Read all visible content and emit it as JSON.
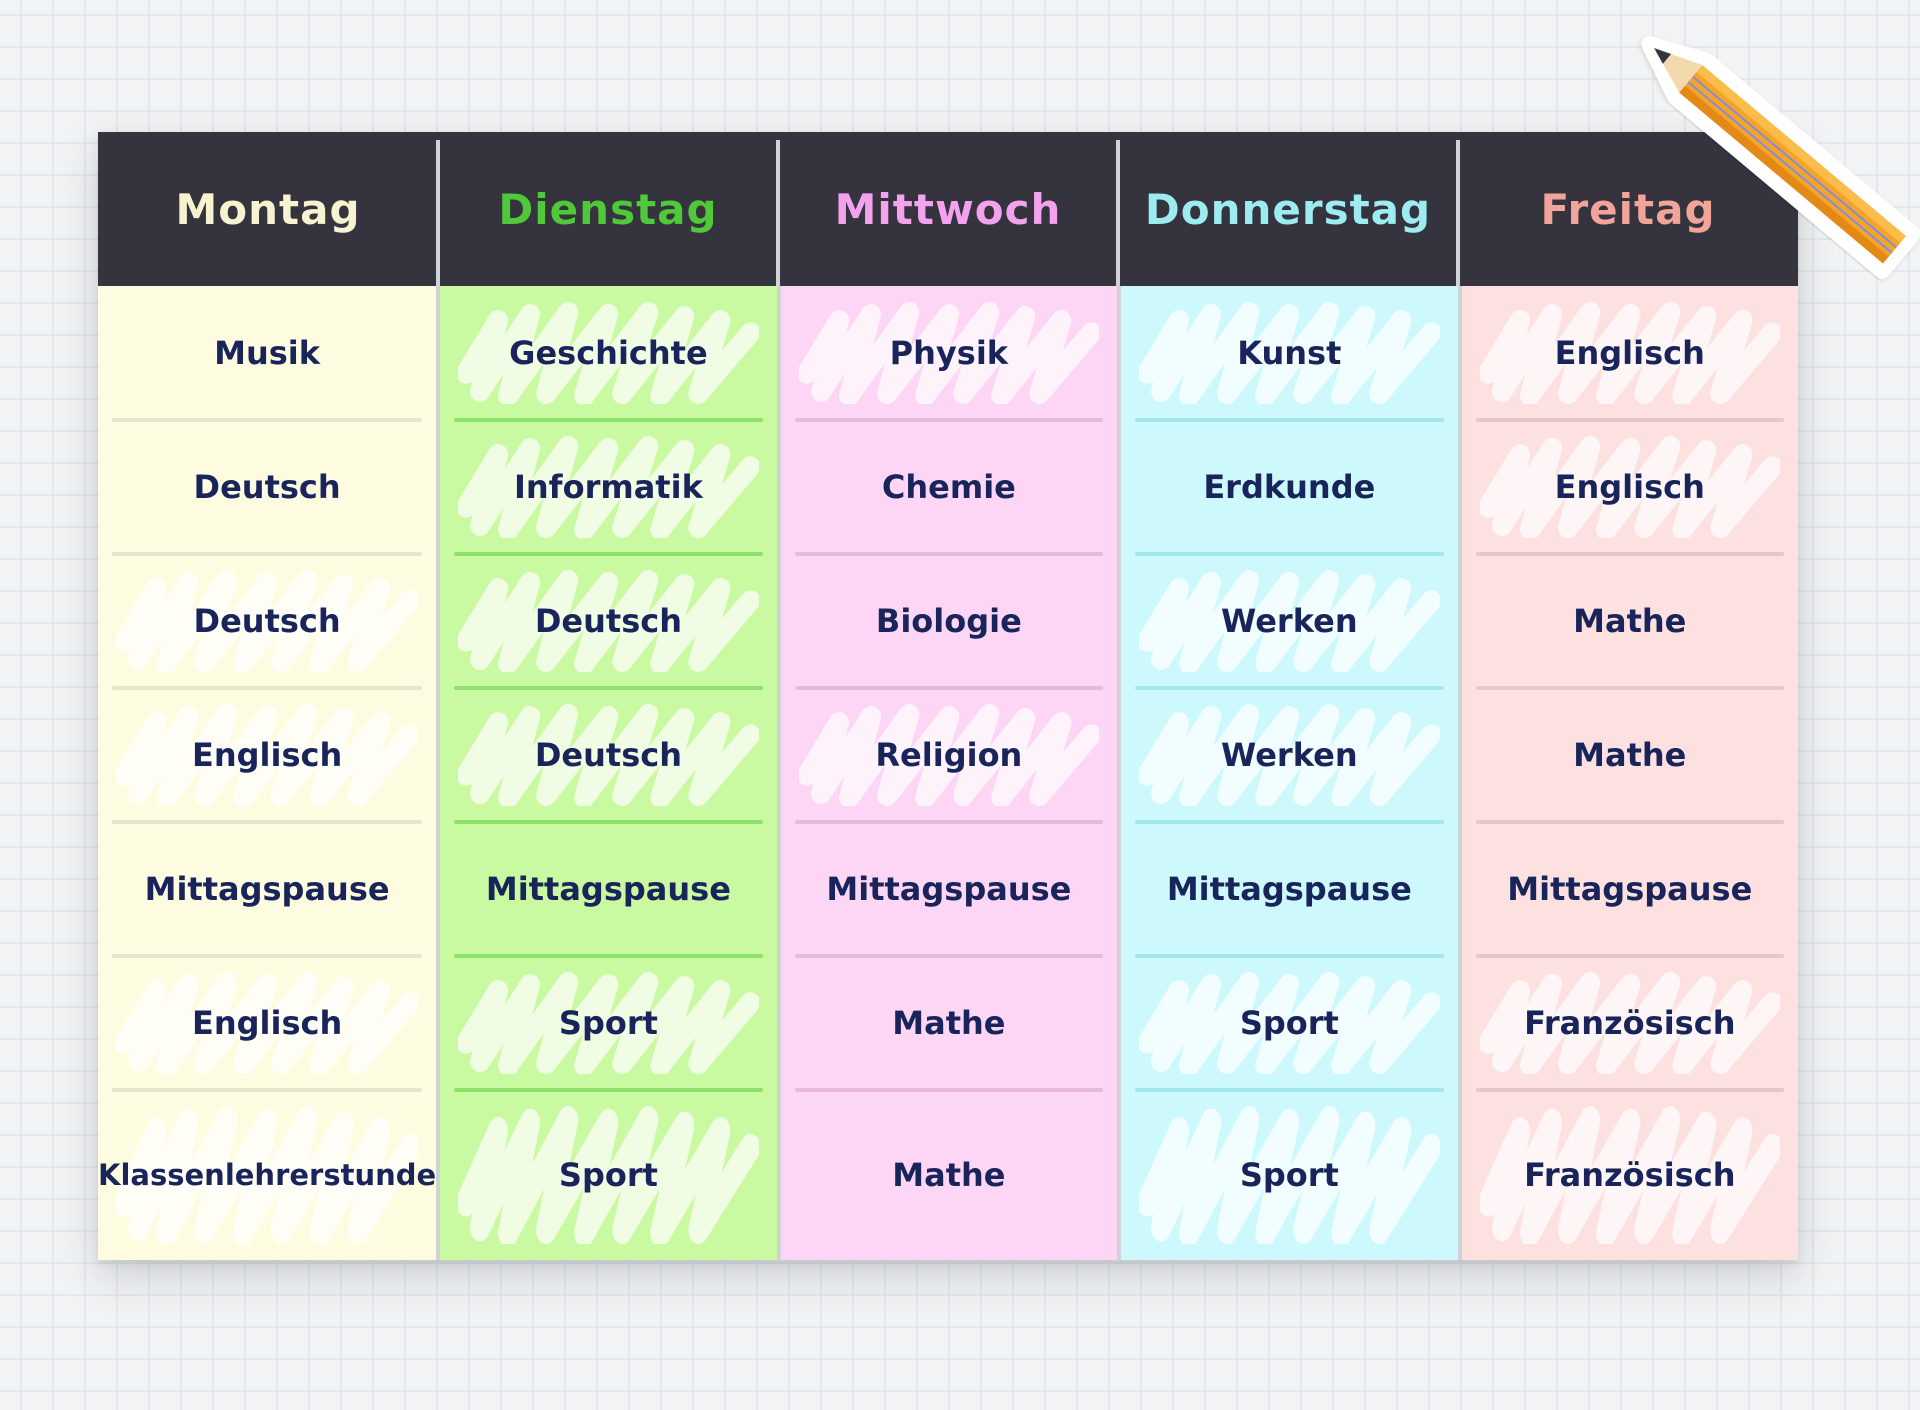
{
  "colors": {
    "header_bg": "#34333e",
    "cell_text": "#18245a",
    "monday": "#fefce0",
    "tuesday": "#c9f9a0",
    "wednesday": "#fcd6f4",
    "thursday": "#cdf9fd",
    "friday": "#fde1e1"
  },
  "days": [
    {
      "label": "Montag",
      "color": "#f7f2d0"
    },
    {
      "label": "Dienstag",
      "color": "#4fc93a"
    },
    {
      "label": "Mittwoch",
      "color": "#f3a2ee"
    },
    {
      "label": "Donnerstag",
      "color": "#9cecf2"
    },
    {
      "label": "Freitag",
      "color": "#f2a49a"
    }
  ],
  "timetable": [
    [
      "Musik",
      "Deutsch",
      "Deutsch",
      "Englisch",
      "Mittagspause",
      "Englisch",
      "Klassenlehrerstunde"
    ],
    [
      "Geschichte",
      "Informatik",
      "Deutsch",
      "Deutsch",
      "Mittagspause",
      "Sport",
      "Sport"
    ],
    [
      "Physik",
      "Chemie",
      "Biologie",
      "Religion",
      "Mittagspause",
      "Mathe",
      "Mathe"
    ],
    [
      "Kunst",
      "Erdkunde",
      "Werken",
      "Werken",
      "Mittagspause",
      "Sport",
      "Sport"
    ],
    [
      "Englisch",
      "Englisch",
      "Mathe",
      "Mathe",
      "Mittagspause",
      "Französisch",
      "Französisch"
    ]
  ],
  "icons": {
    "pencil": "pencil-icon",
    "scribble": "scribble-highlight-icon"
  }
}
